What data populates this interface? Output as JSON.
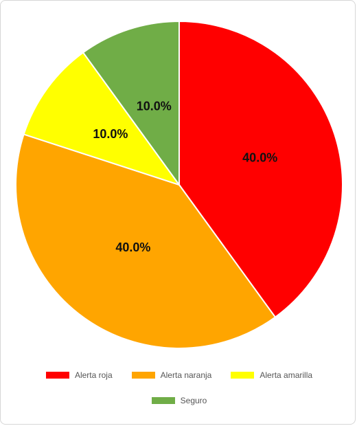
{
  "chart_data": {
    "type": "pie",
    "categories": [
      "Alerta roja",
      "Alerta naranja",
      "Alerta amarilla",
      "Seguro"
    ],
    "values": [
      40.0,
      40.0,
      10.0,
      10.0
    ],
    "labels": [
      "40.0%",
      "40.0%",
      "10.0%",
      "10.0%"
    ],
    "colors": [
      "#ff0000",
      "#ffa500",
      "#ffff00",
      "#70ad47"
    ],
    "start_angle": "12 o'clock, clockwise",
    "legend_position": "bottom"
  },
  "legend": {
    "items": [
      {
        "label": "Alerta roja",
        "color": "#ff0000"
      },
      {
        "label": "Alerta naranja",
        "color": "#ffa500"
      },
      {
        "label": "Alerta amarilla",
        "color": "#ffff00"
      },
      {
        "label": "Seguro",
        "color": "#70ad47"
      }
    ]
  }
}
